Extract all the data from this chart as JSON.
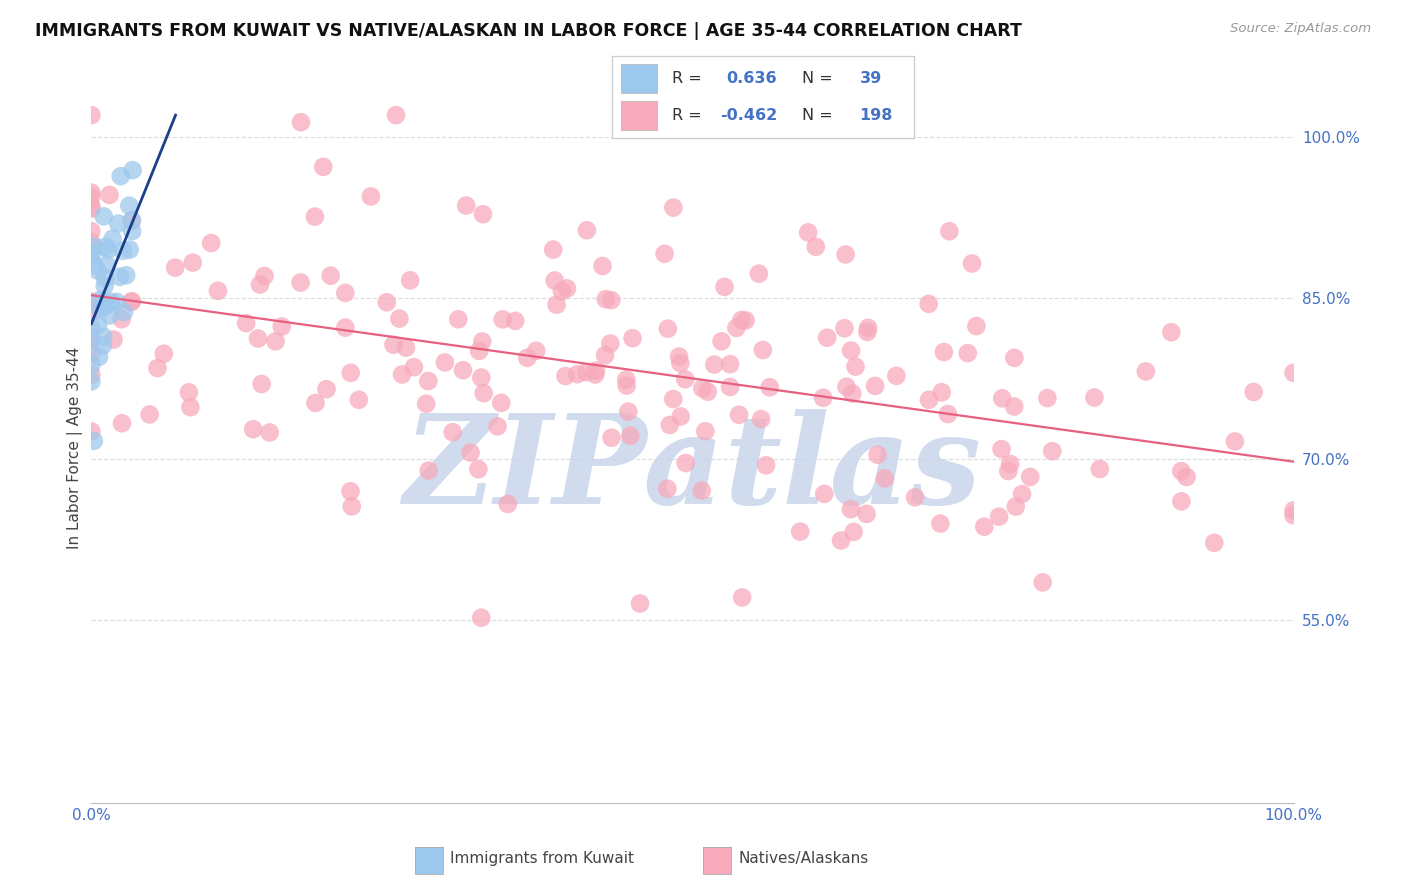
{
  "title": "IMMIGRANTS FROM KUWAIT VS NATIVE/ALASKAN IN LABOR FORCE | AGE 35-44 CORRELATION CHART",
  "source": "Source: ZipAtlas.com",
  "ylabel": "In Labor Force | Age 35-44",
  "xlim": [
    0.0,
    1.0
  ],
  "ylim": [
    0.38,
    1.04
  ],
  "yticks": [
    0.55,
    0.7,
    0.85,
    1.0
  ],
  "ytick_labels": [
    "55.0%",
    "70.0%",
    "85.0%",
    "100.0%"
  ],
  "legend_r_blue": "0.636",
  "legend_n_blue": "39",
  "legend_r_pink": "-0.462",
  "legend_n_pink": "198",
  "blue_color": "#9DC8ED",
  "blue_edge_color": "#9DC8ED",
  "blue_line_color": "#1B3F8A",
  "pink_color": "#F7AABB",
  "pink_edge_color": "#F7AABB",
  "pink_line_color": "#E86080",
  "watermark_color": "#C8D5EC",
  "title_color": "#111111",
  "source_color": "#999999",
  "axis_label_color": "#444444",
  "tick_color": "#4472C4",
  "grid_color": "#DDDDDD",
  "legend_text_dark": "#333333",
  "legend_text_blue": "#4472C4",
  "legend_label_blue": "Immigrants from Kuwait",
  "legend_label_pink": "Natives/Alaskans",
  "blue_N": 39,
  "pink_N": 198,
  "blue_R": 0.636,
  "pink_R": -0.462
}
